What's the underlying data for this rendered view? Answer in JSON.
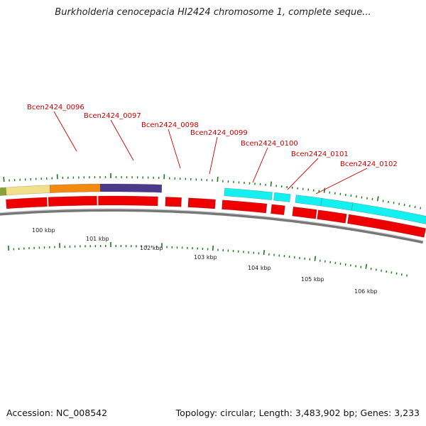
{
  "header": {
    "title": "Burkholderia cenocepacia HI2424 chromosome 1, complete seque..."
  },
  "footer": {
    "accession": "Accession: NC_008542",
    "summary": "Topology: circular; Length: 3,483,902 bp; Genes: 3,233"
  },
  "colors": {
    "backbone": "#777777",
    "cds": "#ee0000",
    "tick": "#1a7a1a",
    "label": "#cc0000",
    "feature_khaki": "#f0e08a",
    "feature_orange": "#f28a10",
    "feature_purple": "#4a3a8a",
    "feature_cyan": "#14f0f0",
    "feature_olive": "#8aa23a"
  },
  "map": {
    "gene_labels": [
      "Bcen2424_0096",
      "Bcen2424_0097",
      "Bcen2424_0098",
      "Bcen2424_0099",
      "Bcen2424_0100",
      "Bcen2424_0101",
      "Bcen2424_0102"
    ],
    "kbp_labels": [
      "100 kbp",
      "101 kbp",
      "102 kbp",
      "103 kbp",
      "104 kbp",
      "105 kbp",
      "106 kbp"
    ]
  }
}
